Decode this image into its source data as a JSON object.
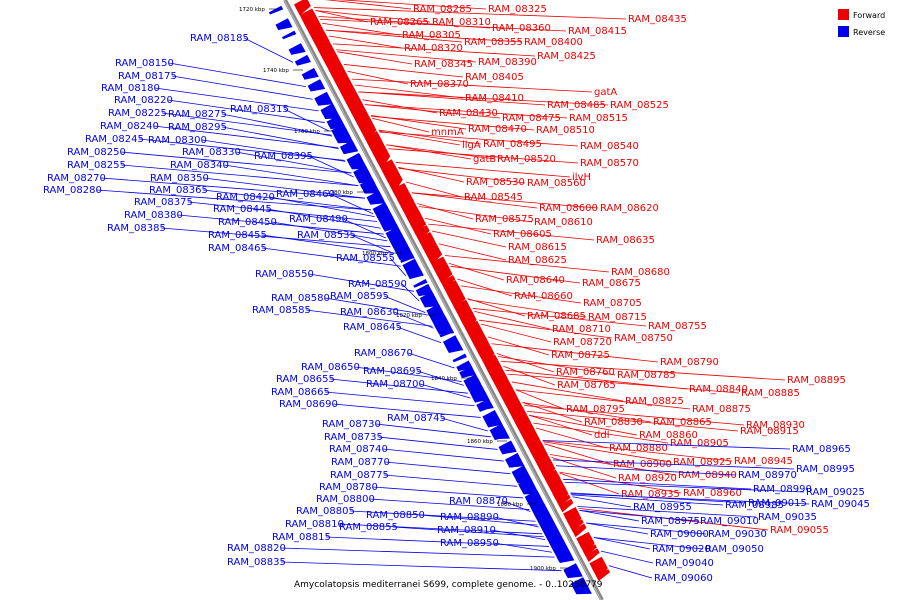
{
  "caption": "Amycolatopsis mediterranei S699, complete genome. - 0..10236779",
  "legend": [
    {
      "label": "Forward",
      "color": "#ee0000"
    },
    {
      "label": "Reverse",
      "color": "#0000ee"
    }
  ],
  "colors": {
    "forward": "#ee0000",
    "reverse": "#0000ee",
    "axis": "#888888"
  },
  "ticks": [
    "1720 kbp",
    "1740 kbp",
    "1760 kbp",
    "1780 kbp",
    "1800 kbp",
    "1820 kbp",
    "1840 kbp",
    "1860 kbp",
    "1880 kbp",
    "1900 kbp"
  ],
  "forward_genes": [
    {
      "t": 0,
      "label": "RAM_08285"
    },
    {
      "t": 0,
      "label": "RAM_08325"
    },
    {
      "t": 0,
      "label": "RAM_08435"
    },
    {
      "t": 0,
      "label": "RAM_08265"
    },
    {
      "t": 0,
      "label": "RAM_08310"
    },
    {
      "t": 0,
      "label": "RAM_08360"
    },
    {
      "t": 0,
      "label": "RAM_08415"
    },
    {
      "t": 0,
      "label": "RAM_08305"
    },
    {
      "t": 0,
      "label": "RAM_08355"
    },
    {
      "t": 0,
      "label": "RAM_08400"
    },
    {
      "t": 0,
      "label": "RAM_08320"
    },
    {
      "t": 0,
      "label": "RAM_08425"
    },
    {
      "t": 0,
      "label": "RAM_08345"
    },
    {
      "t": 0,
      "label": "RAM_08390"
    },
    {
      "t": 0,
      "label": "RAM_08405"
    },
    {
      "t": 0,
      "label": "RAM_08370"
    },
    {
      "t": 0,
      "label": "gatA"
    },
    {
      "t": 0,
      "label": "RAM_08410"
    },
    {
      "t": 0,
      "label": "RAM_08485"
    },
    {
      "t": 0,
      "label": "RAM_08525"
    },
    {
      "t": 0,
      "label": "RAM_08430"
    },
    {
      "t": 0,
      "label": "RAM_08475"
    },
    {
      "t": 0,
      "label": "RAM_08515"
    },
    {
      "t": 0,
      "label": "mnmA"
    },
    {
      "t": 0,
      "label": "RAM_08470"
    },
    {
      "t": 0,
      "label": "RAM_08510"
    },
    {
      "t": 0,
      "label": "ligA"
    },
    {
      "t": 0,
      "label": "RAM_08495"
    },
    {
      "t": 0,
      "label": "RAM_08540"
    },
    {
      "t": 0,
      "label": "gatB"
    },
    {
      "t": 0,
      "label": "RAM_08520"
    },
    {
      "t": 0,
      "label": "RAM_08570"
    },
    {
      "t": 0,
      "label": "ilvH"
    },
    {
      "t": 0,
      "label": "RAM_08530"
    },
    {
      "t": 0,
      "label": "RAM_08560"
    },
    {
      "t": 0,
      "label": "RAM_08545"
    },
    {
      "t": 0,
      "label": "RAM_08600"
    },
    {
      "t": 0,
      "label": "RAM_08620"
    },
    {
      "t": 0,
      "label": "RAM_08575"
    },
    {
      "t": 0,
      "label": "RAM_08610"
    },
    {
      "t": 0,
      "label": "RAM_08605"
    },
    {
      "t": 0,
      "label": "RAM_08635"
    },
    {
      "t": 0,
      "label": "RAM_08615"
    },
    {
      "t": 0,
      "label": "RAM_08625"
    },
    {
      "t": 0,
      "label": "RAM_08680"
    },
    {
      "t": 0,
      "label": "RAM_08640"
    },
    {
      "t": 0,
      "label": "RAM_08675"
    },
    {
      "t": 0,
      "label": "RAM_08660"
    },
    {
      "t": 0,
      "label": "RAM_08705"
    },
    {
      "t": 0,
      "label": "RAM_08685"
    },
    {
      "t": 0,
      "label": "RAM_08715"
    },
    {
      "t": 0,
      "label": "RAM_08755"
    },
    {
      "t": 0,
      "label": "RAM_08710"
    },
    {
      "t": 0,
      "label": "RAM_08720"
    },
    {
      "t": 0,
      "label": "RAM_08750"
    },
    {
      "t": 0,
      "label": "RAM_08725"
    },
    {
      "t": 0,
      "label": "RAM_08790"
    },
    {
      "t": 0,
      "label": "RAM_08760"
    },
    {
      "t": 0,
      "label": "RAM_08785"
    },
    {
      "t": 0,
      "label": "RAM_08765"
    },
    {
      "t": 0,
      "label": "RAM_08840"
    },
    {
      "t": 0,
      "label": "RAM_08895"
    },
    {
      "t": 0,
      "label": "RAM_08825"
    },
    {
      "t": 0,
      "label": "RAM_08885"
    },
    {
      "t": 0,
      "label": "RAM_08795"
    },
    {
      "t": 0,
      "label": "RAM_08875"
    },
    {
      "t": 0,
      "label": "RAM_08830"
    },
    {
      "t": 0,
      "label": "RAM_08865"
    },
    {
      "t": 0,
      "label": "RAM_08930"
    },
    {
      "t": 0,
      "label": "ddl"
    },
    {
      "t": 0,
      "label": "RAM_08860"
    },
    {
      "t": 0,
      "label": "RAM_08915"
    },
    {
      "t": 0,
      "label": "RAM_08880"
    },
    {
      "t": 0,
      "label": "RAM_08905"
    },
    {
      "t": 0,
      "label": "RAM_08900"
    },
    {
      "t": 0,
      "label": "RAM_08925"
    },
    {
      "t": 0,
      "label": "RAM_08945"
    },
    {
      "t": 0,
      "label": "RAM_08920"
    },
    {
      "t": 0,
      "label": "RAM_08940"
    },
    {
      "t": 0,
      "label": "RAM_08935"
    },
    {
      "t": 0,
      "label": "RAM_08960"
    },
    {
      "t": 0,
      "label": "RAM_09055"
    }
  ],
  "reverse_genes": [
    {
      "label": "RAM_08185"
    },
    {
      "label": "RAM_08150"
    },
    {
      "label": "RAM_08175"
    },
    {
      "label": "RAM_08180"
    },
    {
      "label": "RAM_08220"
    },
    {
      "label": "RAM_08275"
    },
    {
      "label": "RAM_08315"
    },
    {
      "label": "RAM_08225"
    },
    {
      "label": "RAM_08240"
    },
    {
      "label": "RAM_08295"
    },
    {
      "label": "RAM_08245"
    },
    {
      "label": "RAM_08300"
    },
    {
      "label": "RAM_08250"
    },
    {
      "label": "RAM_08330"
    },
    {
      "label": "RAM_08395"
    },
    {
      "label": "RAM_08255"
    },
    {
      "label": "RAM_08340"
    },
    {
      "label": "RAM_08270"
    },
    {
      "label": "RAM_08350"
    },
    {
      "label": "RAM_08280"
    },
    {
      "label": "RAM_08365"
    },
    {
      "label": "RAM_08420"
    },
    {
      "label": "RAM_08460"
    },
    {
      "label": "RAM_08375"
    },
    {
      "label": "RAM_08445"
    },
    {
      "label": "RAM_08380"
    },
    {
      "label": "RAM_08450"
    },
    {
      "label": "RAM_08490"
    },
    {
      "label": "RAM_08385"
    },
    {
      "label": "RAM_08455"
    },
    {
      "label": "RAM_08535"
    },
    {
      "label": "RAM_08465"
    },
    {
      "label": "RAM_08555"
    },
    {
      "label": "RAM_08550"
    },
    {
      "label": "RAM_08590"
    },
    {
      "label": "RAM_08580"
    },
    {
      "label": "RAM_08595"
    },
    {
      "label": "RAM_08585"
    },
    {
      "label": "RAM_08630"
    },
    {
      "label": "RAM_08645"
    },
    {
      "label": "RAM_08670"
    },
    {
      "label": "RAM_08650"
    },
    {
      "label": "RAM_08695"
    },
    {
      "label": "RAM_08655"
    },
    {
      "label": "RAM_08700"
    },
    {
      "label": "RAM_08665"
    },
    {
      "label": "RAM_08690"
    },
    {
      "label": "RAM_08745"
    },
    {
      "label": "RAM_08730"
    },
    {
      "label": "RAM_08735"
    },
    {
      "label": "RAM_08740"
    },
    {
      "label": "RAM_08770"
    },
    {
      "label": "RAM_08775"
    },
    {
      "label": "RAM_08780"
    },
    {
      "label": "RAM_08800"
    },
    {
      "label": "RAM_08870"
    },
    {
      "label": "RAM_08805"
    },
    {
      "label": "RAM_08850"
    },
    {
      "label": "RAM_08890"
    },
    {
      "label": "RAM_08810"
    },
    {
      "label": "RAM_08855"
    },
    {
      "label": "RAM_08910"
    },
    {
      "label": "RAM_08815"
    },
    {
      "label": "RAM_08950"
    },
    {
      "label": "RAM_08820"
    },
    {
      "label": "RAM_08835"
    },
    {
      "label": "RAM_08965"
    },
    {
      "label": "RAM_08970"
    },
    {
      "label": "RAM_08995"
    },
    {
      "label": "RAM_08990"
    },
    {
      "label": "RAM_09025"
    },
    {
      "label": "RAM_08955"
    },
    {
      "label": "RAM_08985"
    },
    {
      "label": "RAM_09015"
    },
    {
      "label": "RAM_09045"
    },
    {
      "label": "RAM_08975"
    },
    {
      "label": "RAM_09010"
    },
    {
      "label": "RAM_09035"
    },
    {
      "label": "RAM_09000"
    },
    {
      "label": "RAM_09030"
    },
    {
      "label": "RAM_09020"
    },
    {
      "label": "RAM_09050"
    },
    {
      "label": "RAM_09040"
    },
    {
      "label": "RAM_09060"
    }
  ]
}
